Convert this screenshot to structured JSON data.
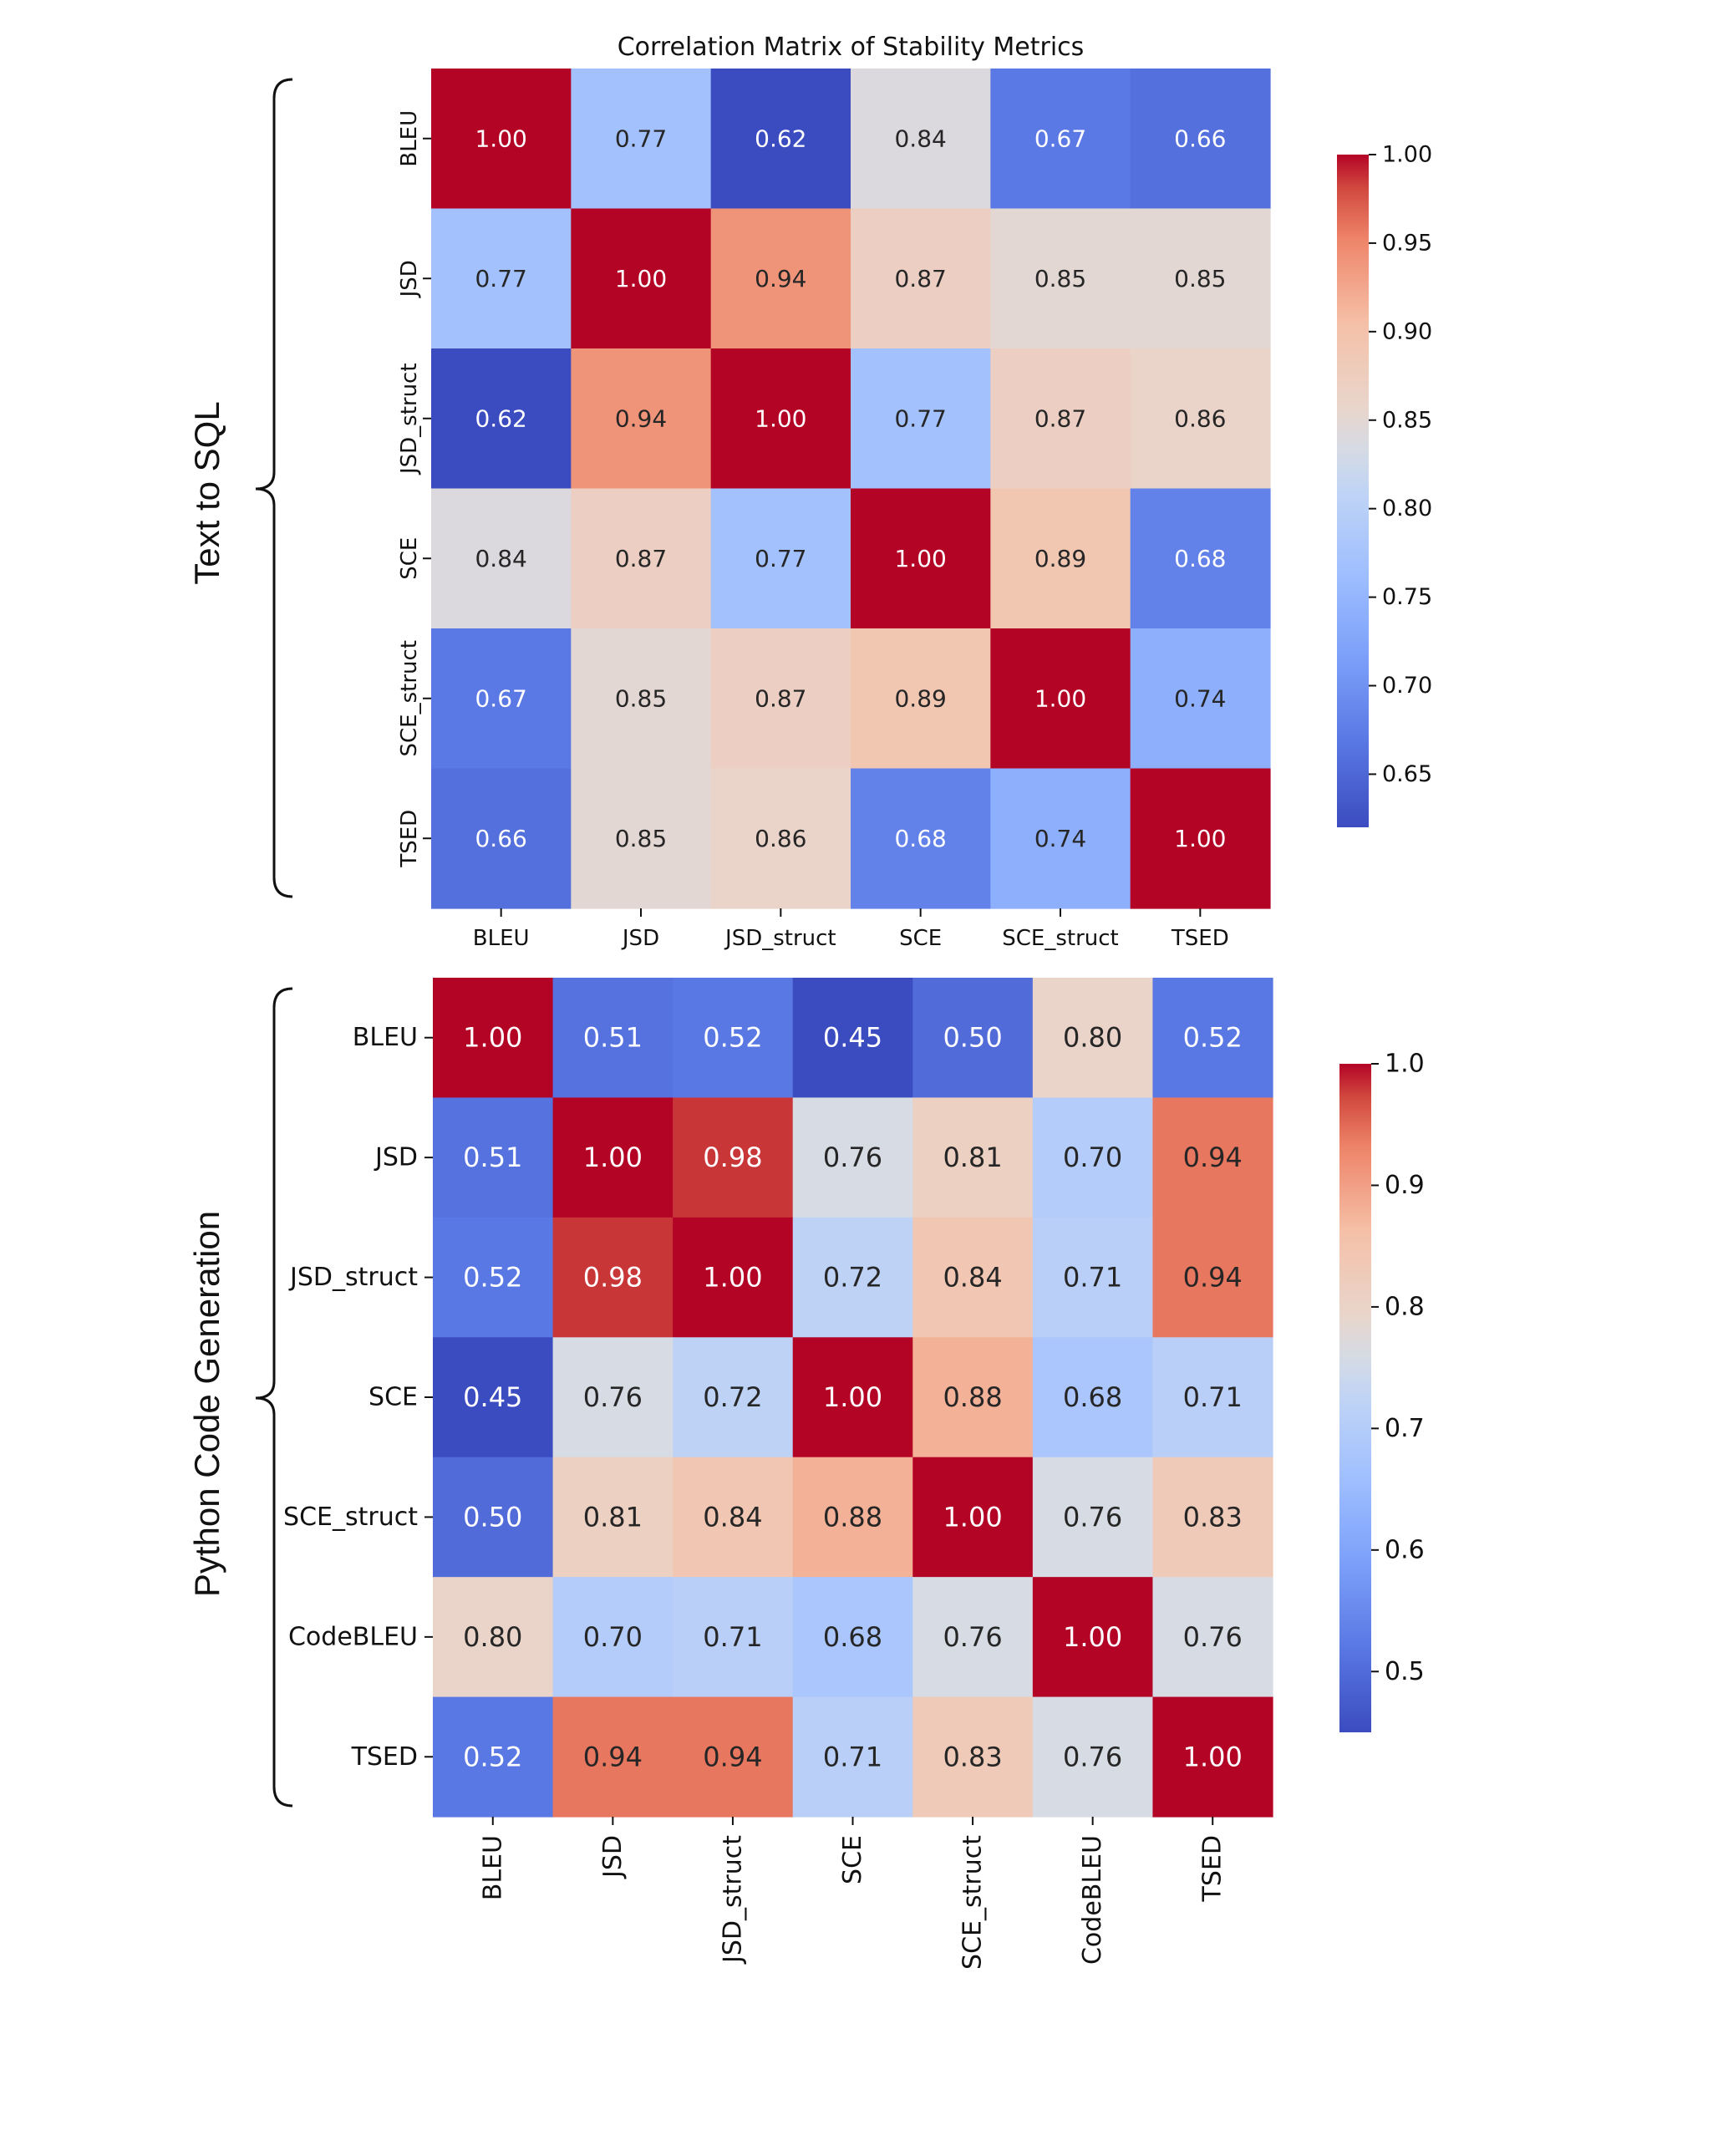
{
  "chart_data": [
    {
      "type": "heatmap",
      "title": "Correlation Matrix of Stability Metrics",
      "section_label": "Text to SQL",
      "labels": [
        "BLEU",
        "JSD",
        "JSD_struct",
        "SCE",
        "SCE_struct",
        "TSED"
      ],
      "values": [
        [
          1.0,
          0.77,
          0.62,
          0.84,
          0.67,
          0.66
        ],
        [
          0.77,
          1.0,
          0.94,
          0.87,
          0.85,
          0.85
        ],
        [
          0.62,
          0.94,
          1.0,
          0.77,
          0.87,
          0.86
        ],
        [
          0.84,
          0.87,
          0.77,
          1.0,
          0.89,
          0.68
        ],
        [
          0.67,
          0.85,
          0.87,
          0.89,
          1.0,
          0.74
        ],
        [
          0.66,
          0.85,
          0.86,
          0.68,
          0.74,
          1.0
        ]
      ],
      "colorbar": {
        "range": [
          0.62,
          1.0
        ],
        "ticks": [
          0.65,
          0.7,
          0.75,
          0.8,
          0.85,
          0.9,
          0.95,
          1.0
        ],
        "tick_labels": [
          "0.65",
          "0.70",
          "0.75",
          "0.80",
          "0.85",
          "0.90",
          "0.95",
          "1.00"
        ]
      },
      "colormap": "coolwarm",
      "x_tick_rotation": "horizontal"
    },
    {
      "type": "heatmap",
      "title": "",
      "section_label": "Python Code Generation",
      "labels": [
        "BLEU",
        "JSD",
        "JSD_struct",
        "SCE",
        "SCE_struct",
        "CodeBLEU",
        "TSED"
      ],
      "values": [
        [
          1.0,
          0.51,
          0.52,
          0.45,
          0.5,
          0.8,
          0.52
        ],
        [
          0.51,
          1.0,
          0.98,
          0.76,
          0.81,
          0.7,
          0.94
        ],
        [
          0.52,
          0.98,
          1.0,
          0.72,
          0.84,
          0.71,
          0.94
        ],
        [
          0.45,
          0.76,
          0.72,
          1.0,
          0.88,
          0.68,
          0.71
        ],
        [
          0.5,
          0.81,
          0.84,
          0.88,
          1.0,
          0.76,
          0.83
        ],
        [
          0.8,
          0.7,
          0.71,
          0.68,
          0.76,
          1.0,
          0.76
        ],
        [
          0.52,
          0.94,
          0.94,
          0.71,
          0.83,
          0.76,
          1.0
        ]
      ],
      "colorbar": {
        "range": [
          0.45,
          1.0
        ],
        "ticks": [
          0.5,
          0.6,
          0.7,
          0.8,
          0.9,
          1.0
        ],
        "tick_labels": [
          "0.5",
          "0.6",
          "0.7",
          "0.8",
          "0.9",
          "1.0"
        ]
      },
      "colormap": "coolwarm",
      "x_tick_rotation": "vertical"
    }
  ]
}
